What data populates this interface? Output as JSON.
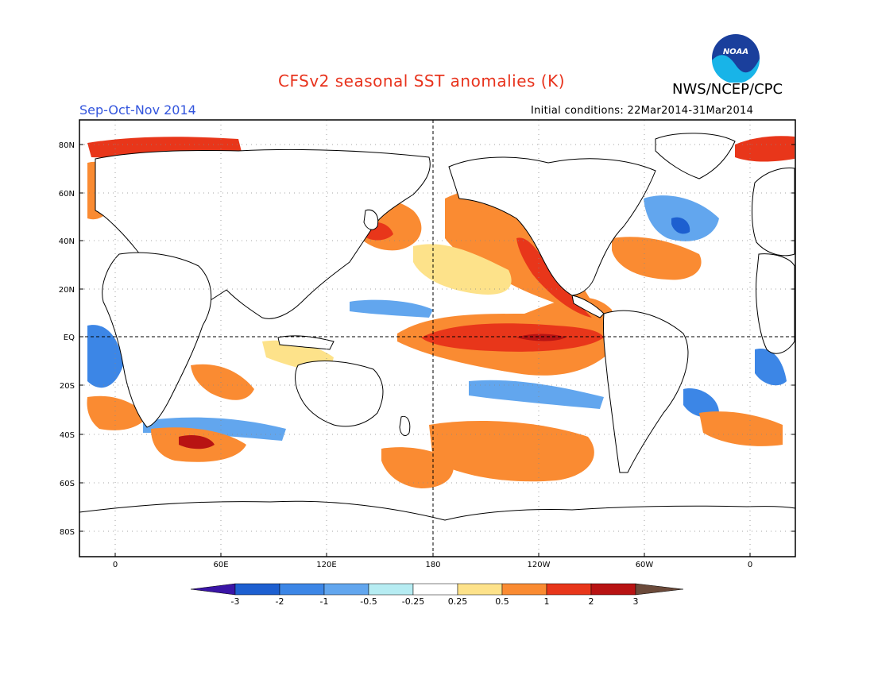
{
  "header": {
    "title": "CFSv2 seasonal SST anomalies (K)",
    "agency": "NWS/NCEP/CPC",
    "logo_text": "NOAA",
    "season": "Sep-Oct-Nov 2014",
    "initial_conditions": "Initial conditions: 22Mar2014-31Mar2014"
  },
  "map": {
    "lat_labels": [
      "80N",
      "60N",
      "40N",
      "20N",
      "EQ",
      "20S",
      "40S",
      "60S",
      "80S"
    ],
    "lon_labels": [
      "0",
      "60E",
      "120E",
      "180",
      "120W",
      "60W",
      "0"
    ]
  },
  "colorbar": {
    "labels": [
      "-3",
      "-2",
      "-1",
      "-0.5",
      "-0.25",
      "0.25",
      "0.5",
      "1",
      "2",
      "3"
    ],
    "colors": [
      "#1d5fd0",
      "#3c86e6",
      "#62a6ee",
      "#b6ecf2",
      "#ffffff",
      "#fde28a",
      "#fa8b32",
      "#e8361a",
      "#b81313"
    ],
    "low_color": "#3a15a6",
    "high_color": "#6b4a3a"
  }
}
